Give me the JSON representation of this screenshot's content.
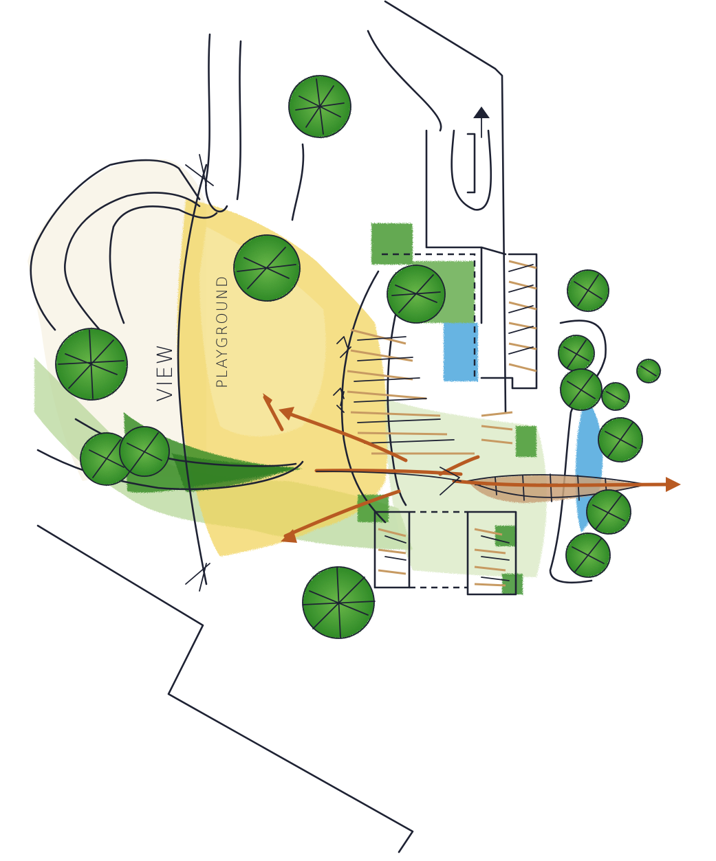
{
  "labels": {
    "view": "VIEW",
    "playground": "PLAYGROUND"
  },
  "colors": {
    "paper": "#ffffff",
    "ink": "#1e2233",
    "yellow_wash": "#f2d45a",
    "light_yellow": "#f7e9a8",
    "green_wash": "#4f9a34",
    "light_green": "#b8d79a",
    "tree_green": "#3f9a33",
    "blue_water": "#4ea8de",
    "arrow_orange": "#b85a22",
    "tan_stroke": "#c79a62"
  },
  "icons": [
    "tree-canopy-icon",
    "arrow-icon"
  ]
}
